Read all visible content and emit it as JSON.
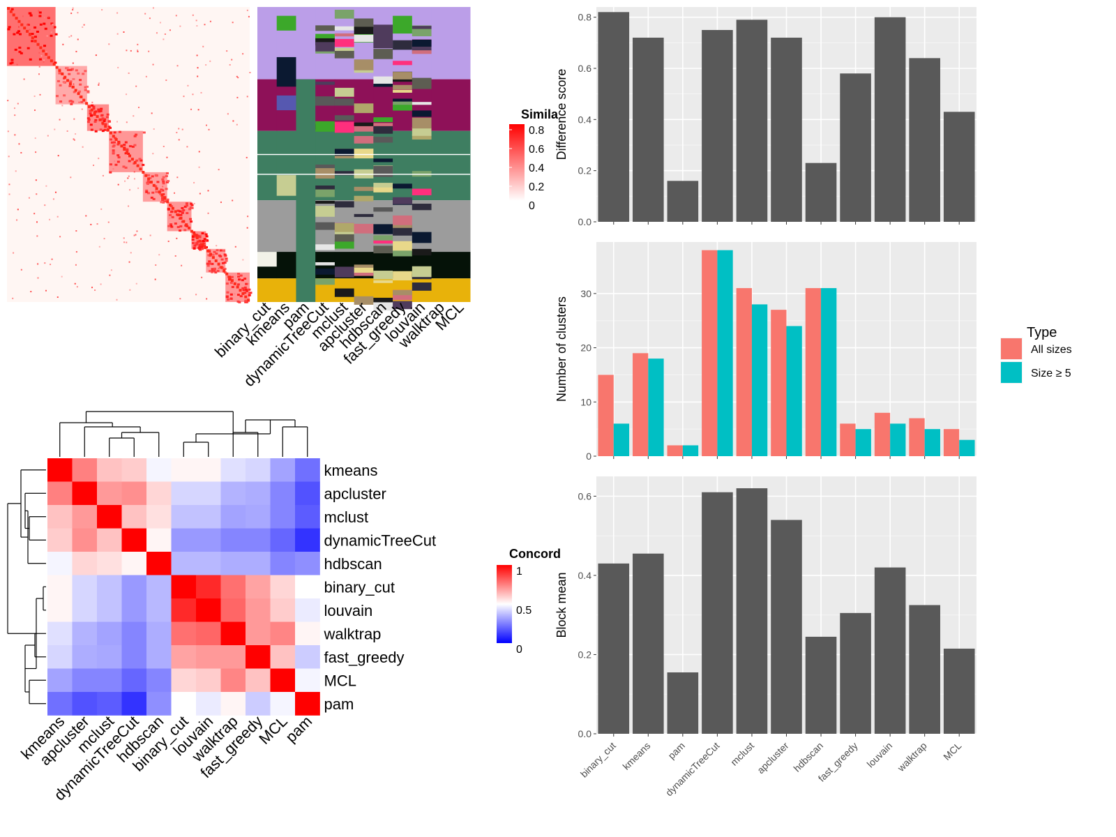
{
  "methods_order": [
    "binary_cut",
    "kmeans",
    "pam",
    "dynamicTreeCut",
    "mclust",
    "apcluster",
    "hdbscan",
    "fast_greedy",
    "louvain",
    "walktrap",
    "MCL"
  ],
  "similarity_legend": {
    "title": "Simila",
    "ticks": [
      "0.8",
      "0.6",
      "0.4",
      "0.2",
      "0"
    ],
    "low_color": "#ffffff",
    "high_color": "#ff0000"
  },
  "concordance_legend": {
    "title": "Concord",
    "ticks": [
      "1",
      "0.5",
      "0"
    ],
    "low_color": "#0000ff",
    "mid_color": "#ffffff",
    "high_color": "#ff0000"
  },
  "type_legend": {
    "title": "Type",
    "items": [
      {
        "label": "All sizes",
        "color": "#F8766D"
      },
      {
        "label": "Size ≥ 5",
        "color": "#00BFC4"
      }
    ]
  },
  "chart_data": [
    {
      "type": "heatmap",
      "description_role": "similarity matrix with cluster membership annotation",
      "column_labels": [
        "binary_cut",
        "kmeans",
        "pam",
        "dynamicTreeCut",
        "mclust",
        "apcluster",
        "hdbscan",
        "fast_greedy",
        "louvain",
        "walktrap",
        "MCL"
      ],
      "legend_title": "Simila",
      "value_range": [
        0,
        0.8
      ]
    },
    {
      "type": "heatmap",
      "legend_title": "Concord",
      "row_labels": [
        "kmeans",
        "apcluster",
        "mclust",
        "dynamicTreeCut",
        "hdbscan",
        "binary_cut",
        "louvain",
        "walktrap",
        "fast_greedy",
        "MCL",
        "pam"
      ],
      "col_labels": [
        "kmeans",
        "apcluster",
        "mclust",
        "dynamicTreeCut",
        "hdbscan",
        "binary_cut",
        "louvain",
        "walktrap",
        "fast_greedy",
        "MCL",
        "pam"
      ],
      "value_range": [
        0,
        1
      ],
      "values": [
        [
          1.0,
          0.75,
          0.62,
          0.6,
          0.48,
          0.52,
          0.52,
          0.44,
          0.42,
          0.32,
          0.22
        ],
        [
          0.75,
          1.0,
          0.7,
          0.72,
          0.58,
          0.42,
          0.42,
          0.35,
          0.34,
          0.26,
          0.16
        ],
        [
          0.62,
          0.7,
          1.0,
          0.62,
          0.56,
          0.38,
          0.38,
          0.32,
          0.33,
          0.26,
          0.18
        ],
        [
          0.6,
          0.72,
          0.62,
          1.0,
          0.52,
          0.3,
          0.3,
          0.26,
          0.26,
          0.2,
          0.1
        ],
        [
          0.48,
          0.58,
          0.56,
          0.52,
          1.0,
          0.36,
          0.36,
          0.34,
          0.34,
          0.26,
          0.28
        ],
        [
          0.52,
          0.42,
          0.38,
          0.3,
          0.36,
          1.0,
          0.92,
          0.78,
          0.68,
          0.58,
          0.5
        ],
        [
          0.52,
          0.42,
          0.38,
          0.3,
          0.36,
          0.92,
          1.0,
          0.8,
          0.7,
          0.6,
          0.46
        ],
        [
          0.44,
          0.35,
          0.32,
          0.26,
          0.34,
          0.78,
          0.8,
          1.0,
          0.7,
          0.74,
          0.52
        ],
        [
          0.42,
          0.34,
          0.33,
          0.26,
          0.34,
          0.68,
          0.7,
          0.7,
          1.0,
          0.62,
          0.4
        ],
        [
          0.32,
          0.26,
          0.26,
          0.2,
          0.26,
          0.58,
          0.6,
          0.74,
          0.62,
          1.0,
          0.48
        ],
        [
          0.22,
          0.16,
          0.18,
          0.1,
          0.28,
          0.5,
          0.46,
          0.52,
          0.4,
          0.48,
          1.0
        ]
      ]
    },
    {
      "type": "bar",
      "categories": [
        "binary_cut",
        "kmeans",
        "pam",
        "dynamicTreeCut",
        "mclust",
        "apcluster",
        "hdbscan",
        "fast_greedy",
        "louvain",
        "walktrap",
        "MCL"
      ],
      "values": [
        0.82,
        0.72,
        0.16,
        0.75,
        0.79,
        0.72,
        0.23,
        0.58,
        0.8,
        0.64,
        0.43
      ],
      "ylabel": "Difference score",
      "ylim": [
        0,
        0.84
      ],
      "yticks": [
        0.0,
        0.2,
        0.4,
        0.6,
        0.8
      ],
      "ytick_labels": [
        "0.0",
        "0.2",
        "0.4",
        "0.6",
        "0.8"
      ]
    },
    {
      "type": "bar",
      "categories": [
        "binary_cut",
        "kmeans",
        "pam",
        "dynamicTreeCut",
        "mclust",
        "apcluster",
        "hdbscan",
        "fast_greedy",
        "louvain",
        "walktrap",
        "MCL"
      ],
      "series": [
        {
          "name": "All sizes",
          "values": [
            15,
            19,
            2,
            38,
            31,
            27,
            31,
            6,
            8,
            7,
            5
          ]
        },
        {
          "name": "Size ≥ 5",
          "values": [
            6,
            18,
            2,
            38,
            28,
            24,
            31,
            5,
            6,
            5,
            3
          ]
        }
      ],
      "ylabel": "Number of clusters",
      "ylim": [
        0,
        39.5
      ],
      "yticks": [
        0,
        10,
        20,
        30
      ],
      "ytick_labels": [
        "0",
        "10",
        "20",
        "30"
      ],
      "legend_title": "Type"
    },
    {
      "type": "bar",
      "categories": [
        "binary_cut",
        "kmeans",
        "pam",
        "dynamicTreeCut",
        "mclust",
        "apcluster",
        "hdbscan",
        "fast_greedy",
        "louvain",
        "walktrap",
        "MCL"
      ],
      "values": [
        0.43,
        0.455,
        0.155,
        0.61,
        0.62,
        0.54,
        0.245,
        0.305,
        0.42,
        0.325,
        0.215
      ],
      "ylabel": "Block mean",
      "ylim": [
        0,
        0.65
      ],
      "yticks": [
        0.0,
        0.2,
        0.4,
        0.6
      ],
      "ytick_labels": [
        "0.0",
        "0.2",
        "0.4",
        "0.6"
      ]
    }
  ]
}
